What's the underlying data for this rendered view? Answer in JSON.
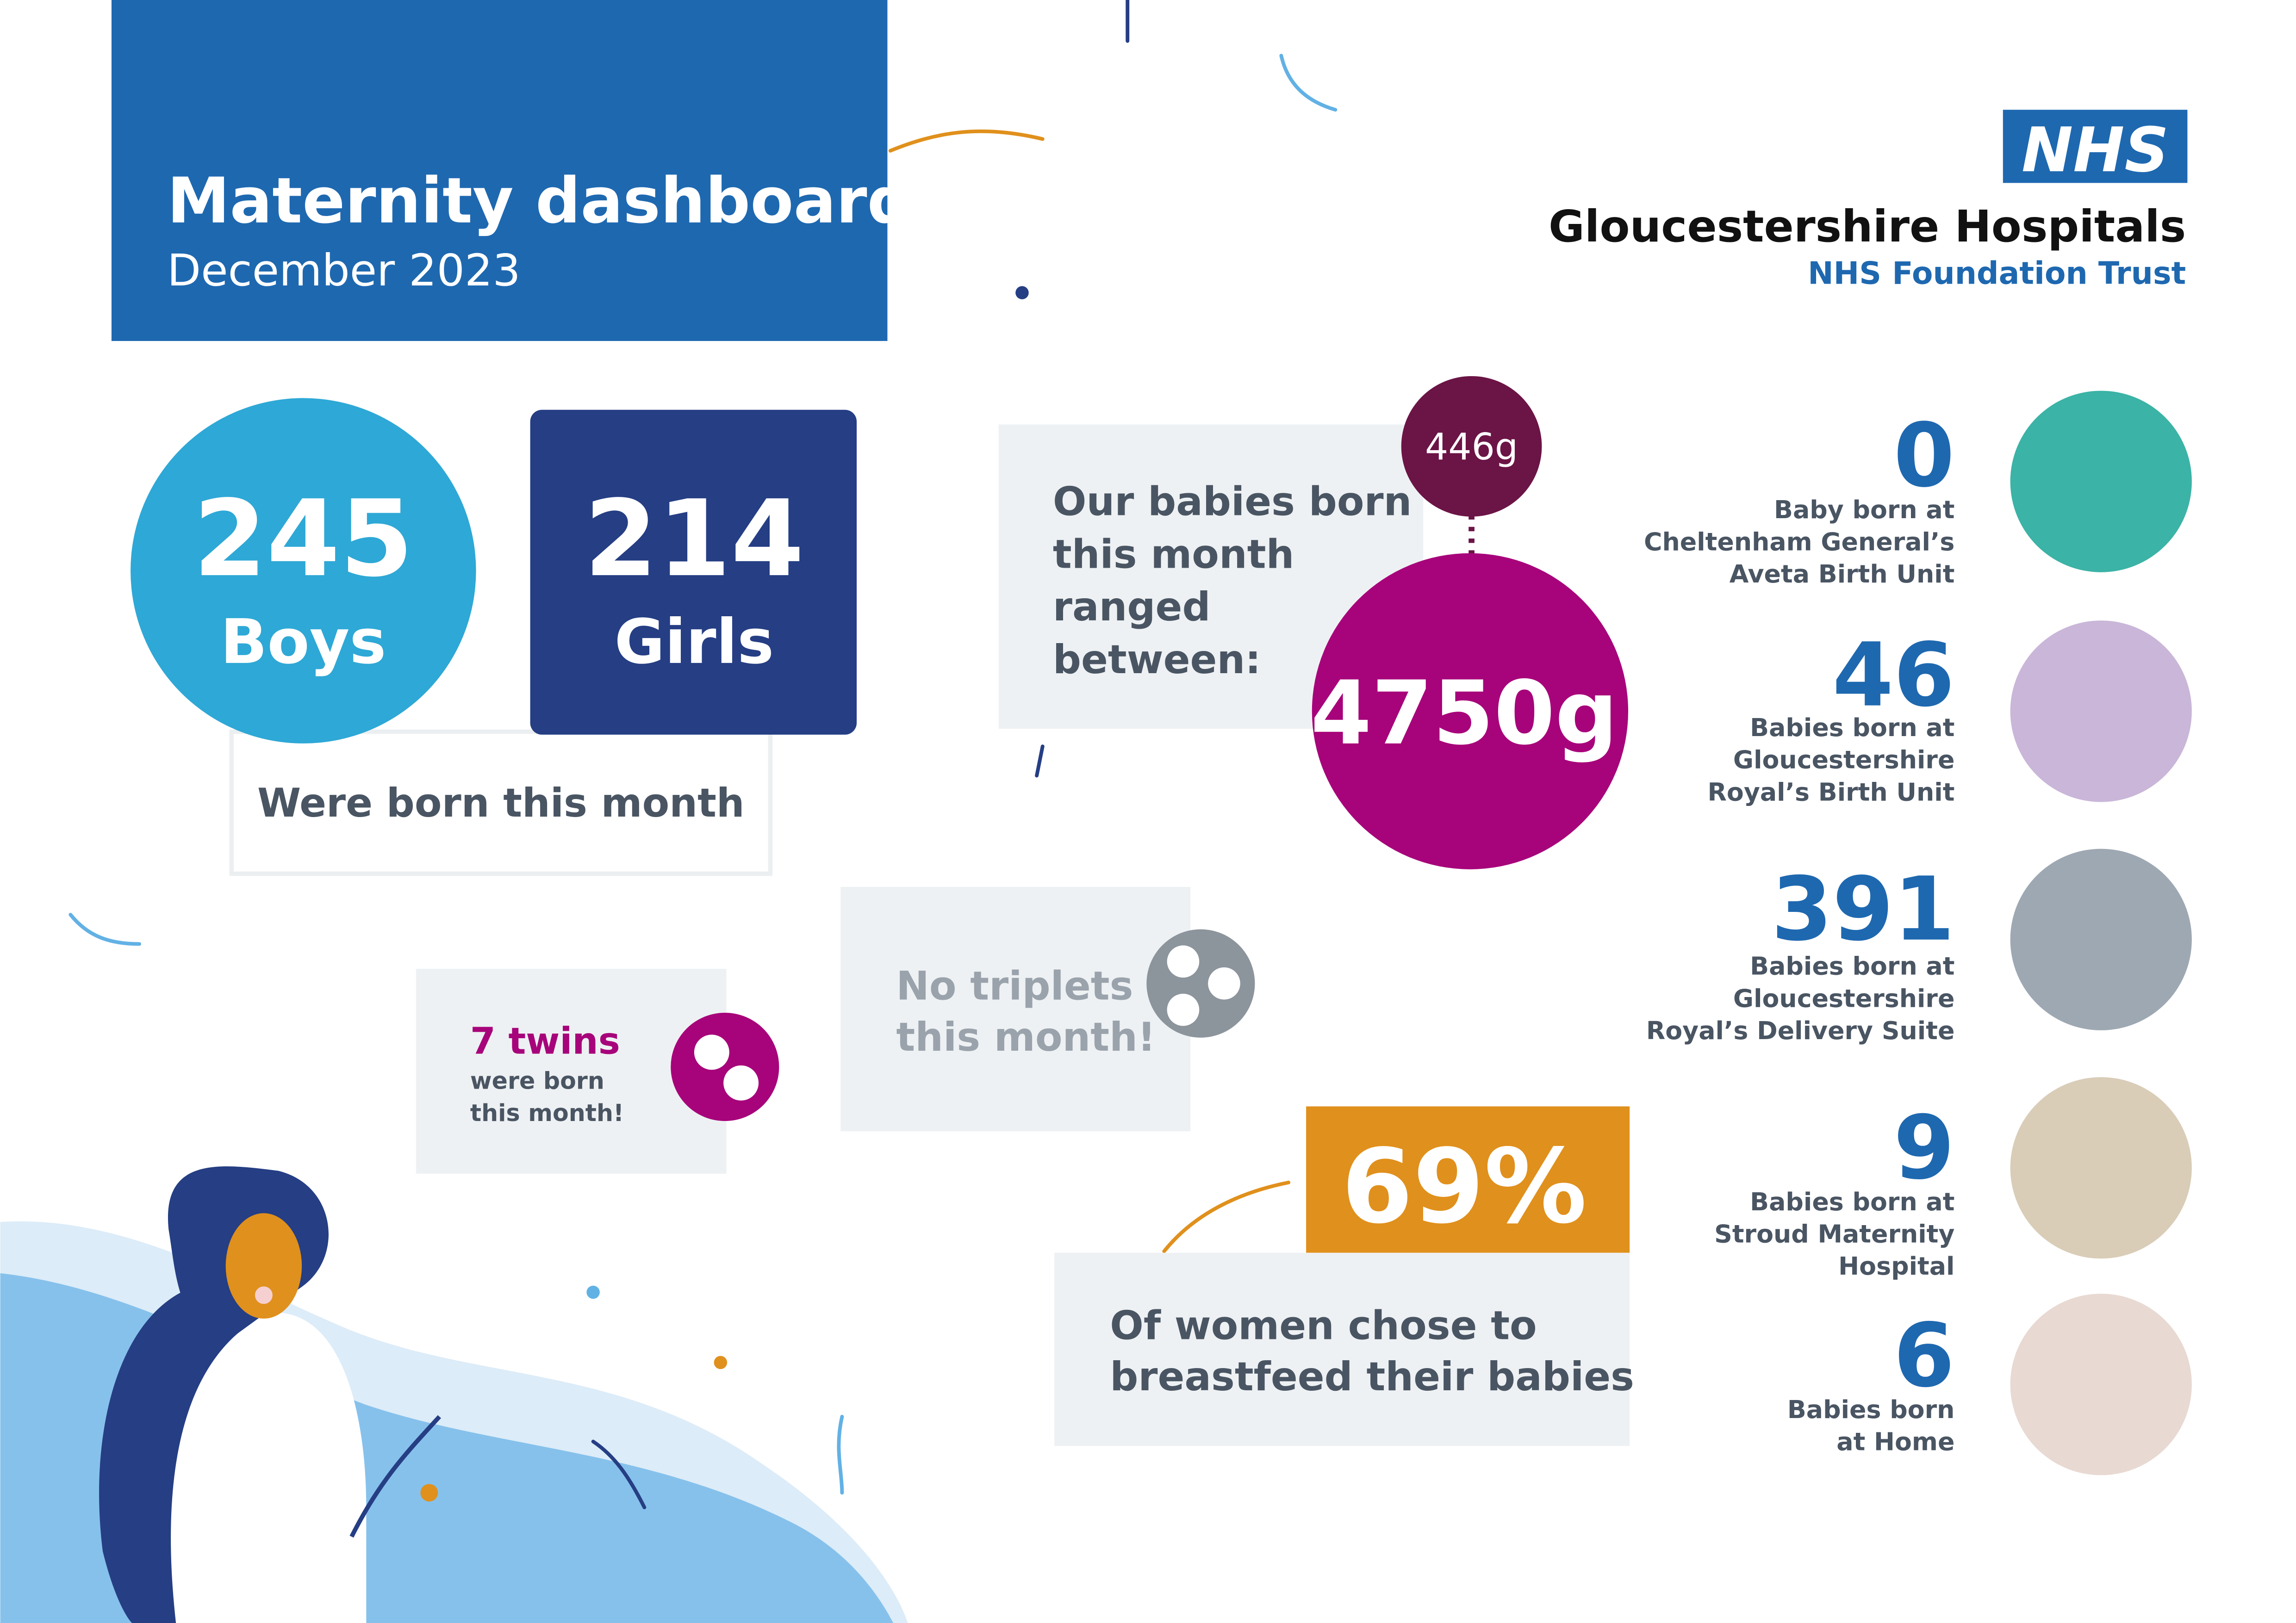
{
  "header": {
    "title": "Maternity dashboard",
    "subtitle": "December 2023"
  },
  "logo": {
    "mark": "NHS",
    "organisation": "Gloucestershire Hospitals",
    "trust": "NHS Foundation Trust"
  },
  "births": {
    "boys": {
      "count": "245",
      "label": "Boys"
    },
    "girls": {
      "count": "214",
      "label": "Girls"
    },
    "caption": "Were born this month"
  },
  "weight": {
    "text": [
      "Our babies born",
      "this month",
      "ranged",
      "between:"
    ],
    "min": "446g",
    "max": "4750g"
  },
  "twins": {
    "headline": "7 twins",
    "text": [
      "were born",
      "this month!"
    ]
  },
  "triplets": {
    "text": [
      "No triplets",
      "this month!"
    ]
  },
  "breastfeeding": {
    "percent": "69%",
    "text": [
      "Of women chose to",
      "breastfeed their babies"
    ]
  },
  "locations": [
    {
      "count": "0",
      "label": [
        "Baby born at",
        "Cheltenham General’s",
        "Aveta Birth Unit"
      ]
    },
    {
      "count": "46",
      "label": [
        "Babies born at",
        "Gloucestershire",
        "Royal’s Birth Unit"
      ]
    },
    {
      "count": "391",
      "label": [
        "Babies born at",
        "Gloucestershire",
        "Royal’s Delivery Suite"
      ]
    },
    {
      "count": "9",
      "label": [
        "Babies born at",
        "Stroud Maternity",
        "Hospital"
      ]
    },
    {
      "count": "6",
      "label": [
        "Babies born",
        "at Home"
      ]
    }
  ]
}
